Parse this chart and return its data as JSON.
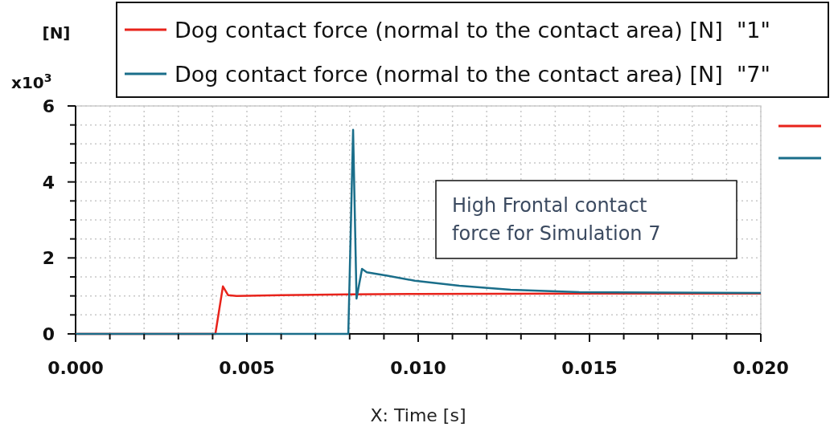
{
  "chart_data": {
    "type": "line",
    "xlabel": "X: Time [s]",
    "ylabel": "[N]",
    "annotations": [
      "x10$^{3}$",
      "High Frontal contact force for Simulation 7"
    ],
    "xlim": [
      0,
      0.02
    ],
    "ylim": [
      0,
      6
    ],
    "xticks": [
      {
        "value": 0,
        "label": "0.000"
      },
      {
        "value": 0.001,
        "label": null
      },
      {
        "value": 0.002,
        "label": null
      },
      {
        "value": 0.003,
        "label": null
      },
      {
        "value": 0.004,
        "label": null
      },
      {
        "value": 0.005,
        "label": "0.005"
      },
      {
        "value": 0.006,
        "label": null
      },
      {
        "value": 0.007,
        "label": null
      },
      {
        "value": 0.008,
        "label": null
      },
      {
        "value": 0.009,
        "label": null
      },
      {
        "value": 0.01,
        "label": "0.010"
      },
      {
        "value": 0.011,
        "label": null
      },
      {
        "value": 0.012,
        "label": null
      },
      {
        "value": 0.013,
        "label": null
      },
      {
        "value": 0.014,
        "label": null
      },
      {
        "value": 0.015,
        "label": "0.015"
      },
      {
        "value": 0.016,
        "label": null
      },
      {
        "value": 0.017,
        "label": null
      },
      {
        "value": 0.018,
        "label": null
      },
      {
        "value": 0.019,
        "label": null
      },
      {
        "value": 0.02,
        "label": "0.020"
      }
    ],
    "yticks": [
      0,
      {
        "value": 0.5,
        "label": null
      },
      {
        "value": 1,
        "label": null
      },
      {
        "value": 1.5,
        "label": null
      },
      2,
      {
        "value": 2.5,
        "label": null
      },
      {
        "value": 3,
        "label": null
      },
      {
        "value": 3.5,
        "label": null
      },
      4,
      {
        "value": 4.5,
        "label": null
      },
      {
        "value": 5,
        "label": null
      },
      {
        "value": 5.5,
        "label": null
      },
      6
    ],
    "grid": true,
    "legend": "top",
    "line_style": "solid",
    "series": [
      {
        "name": "Dog contact force (normal to the contact area) [N]  \"1\"",
        "color": "#e8231b",
        "x": [
          0,
          0.00408,
          0.0043,
          0.00445,
          0.0047,
          0.006,
          0.008,
          0.01,
          0.015,
          0.02
        ],
        "values": [
          0,
          0,
          1.25,
          1.02,
          1.0,
          1.02,
          1.04,
          1.05,
          1.06,
          1.06
        ]
      },
      {
        "name": "Dog contact force (normal to the contact area) [N]  \"7\"",
        "color": "#1a6e8a",
        "x": [
          0,
          0.00796,
          0.0081,
          0.0082,
          0.00836,
          0.0085,
          0.0091,
          0.0099,
          0.0112,
          0.0127,
          0.0147,
          0.017,
          0.02
        ],
        "values": [
          0,
          0,
          5.37,
          0.93,
          1.71,
          1.62,
          1.53,
          1.4,
          1.27,
          1.16,
          1.1,
          1.09,
          1.08
        ]
      }
    ]
  }
}
